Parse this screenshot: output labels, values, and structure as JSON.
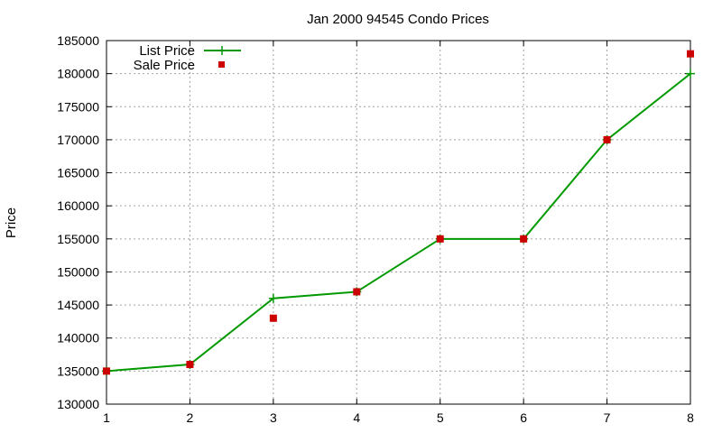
{
  "chart_data": {
    "type": "line",
    "title": "Jan 2000 94545 Condo Prices",
    "xlabel": "",
    "ylabel": "Price",
    "x": [
      1,
      2,
      3,
      4,
      5,
      6,
      7,
      8
    ],
    "xlim": [
      1,
      8
    ],
    "ylim": [
      130000,
      185000
    ],
    "xticks": [
      "1",
      "2",
      "3",
      "4",
      "5",
      "6",
      "7",
      "8"
    ],
    "yticks": [
      "130000",
      "135000",
      "140000",
      "145000",
      "150000",
      "155000",
      "160000",
      "165000",
      "170000",
      "175000",
      "180000",
      "185000"
    ],
    "grid": true,
    "legend_position": "top-left",
    "series": [
      {
        "name": "List Price",
        "style": "line-with-plus-markers",
        "color": "#009900",
        "values": [
          135000,
          136000,
          146000,
          147000,
          155000,
          155000,
          170000,
          180000
        ]
      },
      {
        "name": "Sale Price",
        "style": "square-markers",
        "color": "#cc0000",
        "values": [
          135000,
          136000,
          143000,
          147000,
          155000,
          155000,
          170000,
          183000
        ]
      }
    ]
  }
}
